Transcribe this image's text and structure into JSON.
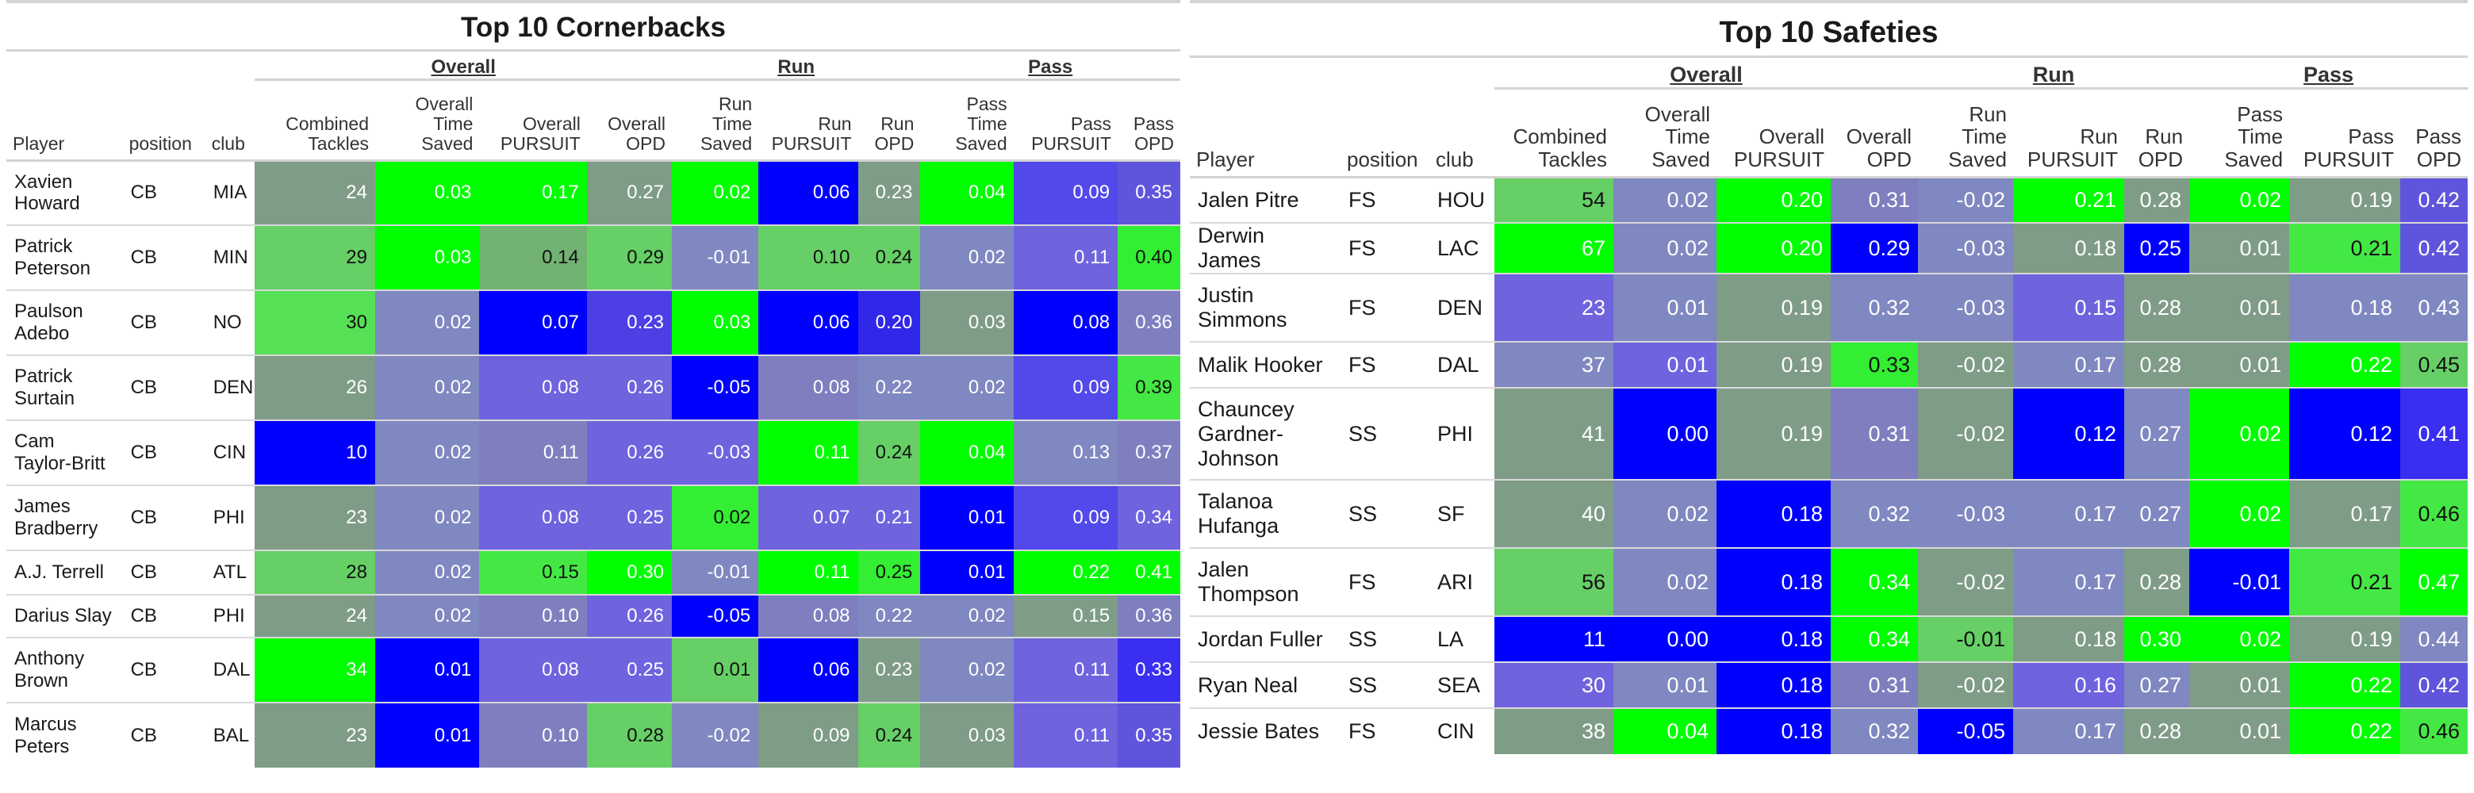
{
  "colors": {
    "green": "#00ff00",
    "blue": "#0000ff",
    "mid_green": "#5fd65f",
    "mid_grey": "#7f9c87",
    "lavender": "#6f63de"
  },
  "columns": {
    "player": "Player",
    "position": "position",
    "club": "club",
    "combined_tackles": "Combined Tackles",
    "overall_time_saved": "Overall Time Saved",
    "overall_pursuit": "Overall PURSUIT",
    "overall_opd": "Overall OPD",
    "run_time_saved": "Run Time Saved",
    "run_pursuit": "Run PURSUIT",
    "run_opd": "Run OPD",
    "pass_time_saved": "Pass Time Saved",
    "pass_pursuit": "Pass PURSUIT",
    "pass_opd": "Pass OPD"
  },
  "spanners": {
    "overall": "Overall",
    "run": "Run",
    "pass": "Pass"
  },
  "cornerbacks": {
    "title": "Top 10 Cornerbacks",
    "rows": [
      {
        "player": "Xavien Howard",
        "position": "CB",
        "club": "MIA",
        "values": [
          "24",
          "0.03",
          "0.17",
          "0.27",
          "0.02",
          "0.06",
          "0.23",
          "0.04",
          "0.09",
          "0.35"
        ],
        "colors": [
          "#7f9c87",
          "#00ff00",
          "#00ff00",
          "#7f9c87",
          "#00ff00",
          "#0000ff",
          "#7f9c87",
          "#00ff00",
          "#5149ea",
          "#5e55dc"
        ]
      },
      {
        "player": "Patrick Peterson",
        "position": "CB",
        "club": "MIN",
        "values": [
          "29",
          "0.03",
          "0.14",
          "0.29",
          "-0.01",
          "0.10",
          "0.24",
          "0.02",
          "0.11",
          "0.40"
        ],
        "colors": [
          "#66cf66",
          "#00ff00",
          "#72b272",
          "#66cf66",
          "#7f88c0",
          "#66cf66",
          "#66cf66",
          "#7f88c0",
          "#6f63de",
          "#33ee33"
        ]
      },
      {
        "player": "Paulson Adebo",
        "position": "CB",
        "club": "NO",
        "values": [
          "30",
          "0.02",
          "0.07",
          "0.23",
          "0.03",
          "0.06",
          "0.20",
          "0.03",
          "0.08",
          "0.36"
        ],
        "colors": [
          "#55e055",
          "#7f88c0",
          "#0000ff",
          "#4c3fe4",
          "#00ff00",
          "#0000ff",
          "#3027e8",
          "#7f9c87",
          "#0000ff",
          "#7f7fbf"
        ]
      },
      {
        "player": "Patrick Surtain",
        "position": "CB",
        "club": "DEN",
        "values": [
          "26",
          "0.02",
          "0.08",
          "0.26",
          "-0.05",
          "0.08",
          "0.22",
          "0.02",
          "0.09",
          "0.39"
        ],
        "colors": [
          "#7f9c87",
          "#7f88c0",
          "#6f63de",
          "#6f63de",
          "#0000ff",
          "#7f7fbf",
          "#7f88c0",
          "#7f88c0",
          "#5149ea",
          "#44e844"
        ]
      },
      {
        "player": "Cam Taylor-Britt",
        "position": "CB",
        "club": "CIN",
        "values": [
          "10",
          "0.02",
          "0.11",
          "0.26",
          "-0.03",
          "0.11",
          "0.24",
          "0.04",
          "0.13",
          "0.37"
        ],
        "colors": [
          "#0000ff",
          "#7f88c0",
          "#7f7fbf",
          "#6f63de",
          "#6f63de",
          "#00ff00",
          "#66cf66",
          "#00ff00",
          "#7f88c0",
          "#7f7fbf"
        ]
      },
      {
        "player": "James Bradberry",
        "position": "CB",
        "club": "PHI",
        "values": [
          "23",
          "0.02",
          "0.08",
          "0.25",
          "0.02",
          "0.07",
          "0.21",
          "0.01",
          "0.09",
          "0.34"
        ],
        "colors": [
          "#7f9c87",
          "#7f88c0",
          "#6f63de",
          "#6f63de",
          "#33ee33",
          "#6f63de",
          "#6f63de",
          "#0000ff",
          "#5149ea",
          "#6f63de"
        ]
      },
      {
        "player": "A.J. Terrell",
        "position": "CB",
        "club": "ATL",
        "values": [
          "28",
          "0.02",
          "0.15",
          "0.30",
          "-0.01",
          "0.11",
          "0.25",
          "0.01",
          "0.22",
          "0.41"
        ],
        "colors": [
          "#66cf66",
          "#7f88c0",
          "#44e844",
          "#00ff00",
          "#7f88c0",
          "#00ff00",
          "#33ee33",
          "#0000ff",
          "#00ff00",
          "#00ff00"
        ]
      },
      {
        "player": "Darius Slay",
        "position": "CB",
        "club": "PHI",
        "values": [
          "24",
          "0.02",
          "0.10",
          "0.26",
          "-0.05",
          "0.08",
          "0.22",
          "0.02",
          "0.15",
          "0.36"
        ],
        "colors": [
          "#7f9c87",
          "#7f88c0",
          "#7f7fbf",
          "#6f63de",
          "#0000ff",
          "#7f7fbf",
          "#7f88c0",
          "#7f88c0",
          "#7f9c87",
          "#7f7fbf"
        ]
      },
      {
        "player": "Anthony Brown",
        "position": "CB",
        "club": "DAL",
        "values": [
          "34",
          "0.01",
          "0.08",
          "0.25",
          "0.01",
          "0.06",
          "0.23",
          "0.02",
          "0.11",
          "0.33"
        ],
        "colors": [
          "#00ff00",
          "#0000ff",
          "#6f63de",
          "#6f63de",
          "#66cf66",
          "#0000ff",
          "#7f9c87",
          "#7f88c0",
          "#6f63de",
          "#3a2ff0"
        ]
      },
      {
        "player": "Marcus Peters",
        "position": "CB",
        "club": "BAL",
        "values": [
          "23",
          "0.01",
          "0.10",
          "0.28",
          "-0.02",
          "0.09",
          "0.24",
          "0.03",
          "0.11",
          "0.35"
        ],
        "colors": [
          "#7f9c87",
          "#0000ff",
          "#7f7fbf",
          "#66cf66",
          "#7f88c0",
          "#7f9c87",
          "#66cf66",
          "#7f9c87",
          "#6f63de",
          "#5e55dc"
        ]
      }
    ]
  },
  "safeties": {
    "title": "Top 10 Safeties",
    "rows": [
      {
        "player": "Jalen Pitre",
        "position": "FS",
        "club": "HOU",
        "values": [
          "54",
          "0.02",
          "0.20",
          "0.31",
          "-0.02",
          "0.21",
          "0.28",
          "0.02",
          "0.19",
          "0.42"
        ],
        "colors": [
          "#66cf66",
          "#7f88c0",
          "#00ff00",
          "#7f7fbf",
          "#7f88c0",
          "#00ff00",
          "#7f9c87",
          "#00ff00",
          "#7f9c87",
          "#5e55dc"
        ]
      },
      {
        "player": "Derwin James",
        "position": "FS",
        "club": "LAC",
        "values": [
          "67",
          "0.02",
          "0.20",
          "0.29",
          "-0.03",
          "0.18",
          "0.25",
          "0.01",
          "0.21",
          "0.42"
        ],
        "colors": [
          "#00ff00",
          "#7f88c0",
          "#00ff00",
          "#0000ff",
          "#7f88c0",
          "#7f9c87",
          "#0000ff",
          "#7f9c87",
          "#44e844",
          "#5e55dc"
        ]
      },
      {
        "player": "Justin Simmons",
        "position": "FS",
        "club": "DEN",
        "values": [
          "23",
          "0.01",
          "0.19",
          "0.32",
          "-0.03",
          "0.15",
          "0.28",
          "0.01",
          "0.18",
          "0.43"
        ],
        "colors": [
          "#6f63de",
          "#7f88c0",
          "#7f9c87",
          "#7f88c0",
          "#7f88c0",
          "#6f63de",
          "#7f9c87",
          "#7f9c87",
          "#7f88c0",
          "#7f88c0"
        ]
      },
      {
        "player": "Malik Hooker",
        "position": "FS",
        "club": "DAL",
        "values": [
          "37",
          "0.01",
          "0.19",
          "0.33",
          "-0.02",
          "0.17",
          "0.28",
          "0.01",
          "0.22",
          "0.45"
        ],
        "colors": [
          "#7f88c0",
          "#6f63de",
          "#7f9c87",
          "#33ee33",
          "#7f9c87",
          "#7f88c0",
          "#7f9c87",
          "#7f9c87",
          "#00ff00",
          "#66cf66"
        ]
      },
      {
        "player": "Chauncey Gardner-Johnson",
        "position": "SS",
        "club": "PHI",
        "values": [
          "41",
          "0.00",
          "0.19",
          "0.31",
          "-0.02",
          "0.12",
          "0.27",
          "0.02",
          "0.12",
          "0.41"
        ],
        "colors": [
          "#7f9c87",
          "#0000ff",
          "#7f9c87",
          "#7f7fbf",
          "#7f9c87",
          "#0000ff",
          "#7f88c0",
          "#00ff00",
          "#0000ff",
          "#3a2ff0"
        ]
      },
      {
        "player": "Talanoa Hufanga",
        "position": "SS",
        "club": "SF",
        "values": [
          "40",
          "0.02",
          "0.18",
          "0.32",
          "-0.03",
          "0.17",
          "0.27",
          "0.02",
          "0.17",
          "0.46"
        ],
        "colors": [
          "#7f9c87",
          "#7f88c0",
          "#0000ff",
          "#7f88c0",
          "#7f88c0",
          "#7f88c0",
          "#7f88c0",
          "#00ff00",
          "#7f9c87",
          "#44e844"
        ]
      },
      {
        "player": "Jalen Thompson",
        "position": "FS",
        "club": "ARI",
        "values": [
          "56",
          "0.02",
          "0.18",
          "0.34",
          "-0.02",
          "0.17",
          "0.28",
          "-0.01",
          "0.21",
          "0.47"
        ],
        "colors": [
          "#66cf66",
          "#7f88c0",
          "#0000ff",
          "#00ff00",
          "#7f9c87",
          "#7f88c0",
          "#7f9c87",
          "#0000ff",
          "#44e844",
          "#00ff00"
        ]
      },
      {
        "player": "Jordan Fuller",
        "position": "SS",
        "club": "LA",
        "values": [
          "11",
          "0.00",
          "0.18",
          "0.34",
          "-0.01",
          "0.18",
          "0.30",
          "0.02",
          "0.19",
          "0.44"
        ],
        "colors": [
          "#0000ff",
          "#0000ff",
          "#0000ff",
          "#00ff00",
          "#66cf66",
          "#7f9c87",
          "#00ff00",
          "#00ff00",
          "#7f9c87",
          "#7f88c0"
        ]
      },
      {
        "player": "Ryan Neal",
        "position": "SS",
        "club": "SEA",
        "values": [
          "30",
          "0.01",
          "0.18",
          "0.31",
          "-0.02",
          "0.16",
          "0.27",
          "0.01",
          "0.22",
          "0.42"
        ],
        "colors": [
          "#6f63de",
          "#7f88c0",
          "#0000ff",
          "#7f7fbf",
          "#7f9c87",
          "#6f63de",
          "#7f88c0",
          "#7f9c87",
          "#00ff00",
          "#5e55dc"
        ]
      },
      {
        "player": "Jessie Bates",
        "position": "FS",
        "club": "CIN",
        "values": [
          "38",
          "0.04",
          "0.18",
          "0.32",
          "-0.05",
          "0.17",
          "0.28",
          "0.01",
          "0.22",
          "0.46"
        ],
        "colors": [
          "#7f9c87",
          "#00ff00",
          "#0000ff",
          "#7f88c0",
          "#0000ff",
          "#7f88c0",
          "#7f9c87",
          "#7f9c87",
          "#00ff00",
          "#44e844"
        ]
      }
    ]
  }
}
